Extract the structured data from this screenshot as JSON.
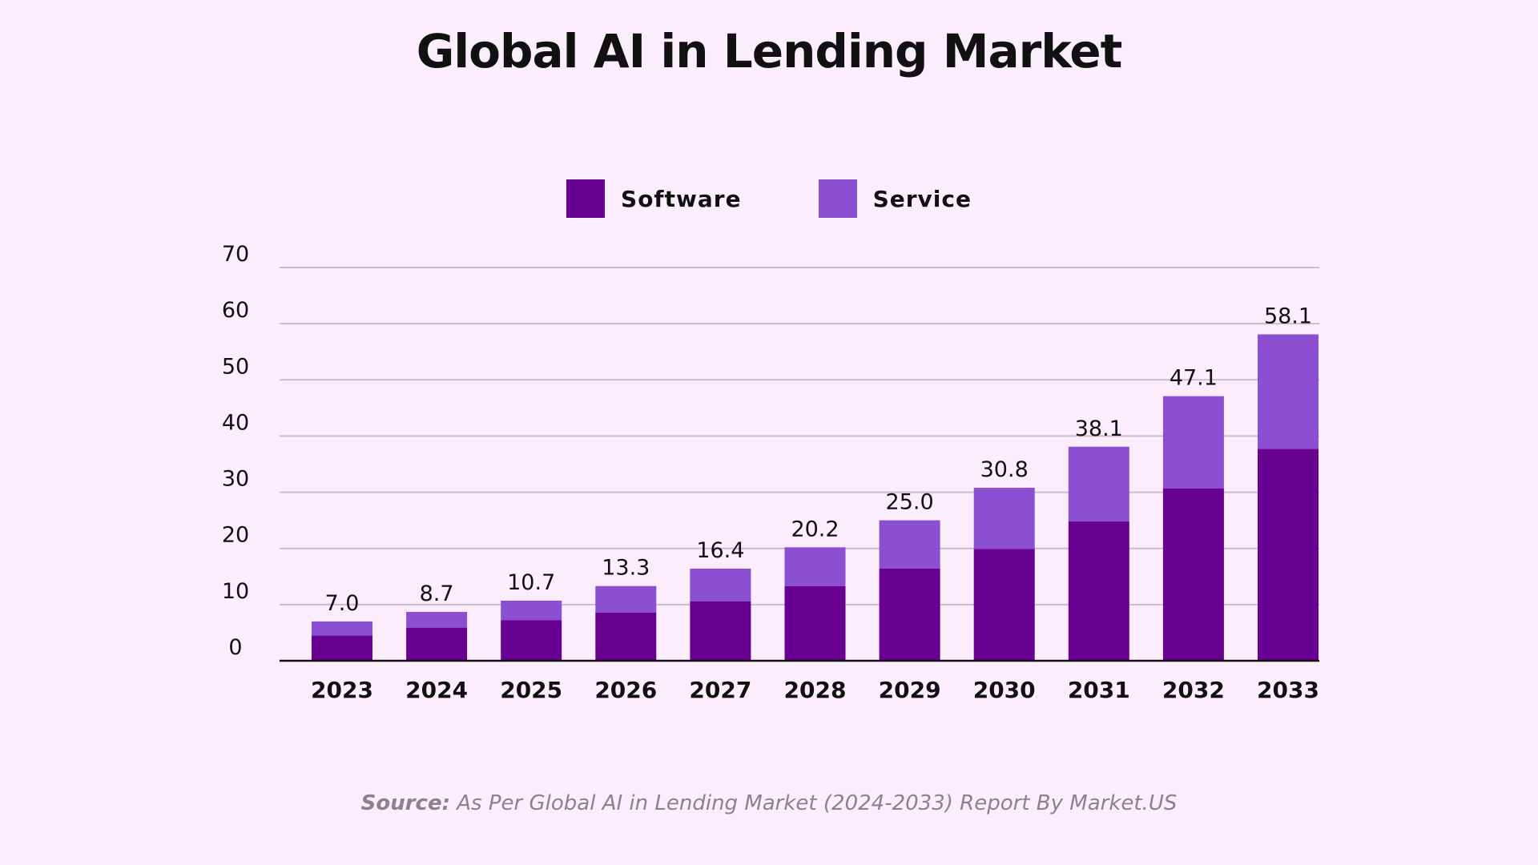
{
  "chart_data": {
    "type": "bar",
    "stacked": true,
    "title": "Global AI in Lending Market",
    "categories": [
      "2023",
      "2024",
      "2025",
      "2026",
      "2027",
      "2028",
      "2029",
      "2030",
      "2031",
      "2032",
      "2033"
    ],
    "series": [
      {
        "name": "Software",
        "color": "#680091",
        "values": [
          4.5,
          5.9,
          7.2,
          8.6,
          10.6,
          13.3,
          16.4,
          19.9,
          24.8,
          30.7,
          37.7
        ]
      },
      {
        "name": "Service",
        "color": "#8b4fd1",
        "values": [
          2.5,
          2.8,
          3.5,
          4.7,
          5.8,
          6.9,
          8.6,
          10.9,
          13.3,
          16.4,
          20.4
        ]
      }
    ],
    "totals": [
      "7.0",
      "8.7",
      "10.7",
      "13.3",
      "16.4",
      "20.2",
      "25.0",
      "30.8",
      "38.1",
      "47.1",
      "58.1"
    ],
    "yticks": [
      "0",
      "10",
      "20",
      "30",
      "40",
      "50",
      "60",
      "70"
    ],
    "ylim": [
      0,
      70
    ],
    "grid": true,
    "legend_position": "top"
  },
  "source": {
    "label": "Source:",
    "text": " As Per Global AI in Lending Market (2024-2033) Report By Market.US"
  }
}
